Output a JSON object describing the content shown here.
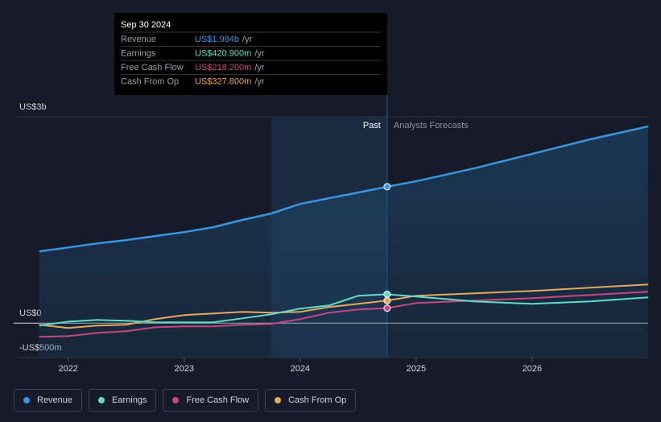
{
  "chart_data": {
    "type": "line",
    "x": [
      2021.75,
      2022,
      2022.25,
      2022.5,
      2022.75,
      2023,
      2023.25,
      2023.5,
      2023.75,
      2024,
      2024.25,
      2024.5,
      2024.75,
      2025,
      2025.5,
      2026,
      2026.5,
      2027
    ],
    "xlim": [
      2021.53,
      2027
    ],
    "xticks": [
      2022,
      2023,
      2024,
      2025,
      2026
    ],
    "ylim": [
      -500,
      3000
    ],
    "yticks": [
      {
        "value": 3000,
        "label": "US$3b"
      },
      {
        "value": 0,
        "label": "US$0"
      },
      {
        "value": -500,
        "label": "-US$500m"
      }
    ],
    "series": [
      {
        "name": "Revenue",
        "color": "#3a96e0",
        "values": [
          1043,
          1100,
          1160,
          1207,
          1266,
          1324,
          1395,
          1500,
          1594,
          1734,
          1817,
          1898,
          1984,
          2063,
          2250,
          2461,
          2672,
          2860
        ]
      },
      {
        "name": "Earnings",
        "color": "#5fdcc8",
        "values": [
          -35,
          23,
          47,
          35,
          12,
          12,
          12,
          70,
          129,
          211,
          258,
          398,
          420.9,
          387,
          316,
          281,
          316,
          375
        ]
      },
      {
        "name": "Free Cash Flow",
        "color": "#c8477e",
        "values": [
          -199,
          -188,
          -141,
          -117,
          -59,
          -47,
          -47,
          -23,
          -12,
          59,
          152,
          199,
          218.2,
          293,
          328,
          363,
          410,
          457
        ]
      },
      {
        "name": "Cash From Op",
        "color": "#e6a85a",
        "values": [
          -23,
          -70,
          -35,
          -23,
          59,
          117,
          141,
          164,
          152,
          164,
          234,
          281,
          327.8,
          398,
          434,
          469,
          516,
          563
        ]
      }
    ],
    "highlight": [
      2023.75,
      2024.75
    ],
    "past_label": "Past",
    "forecast_label": "Analysts Forecasts",
    "tooltip": {
      "title": "Sep 30 2024",
      "unit": "/yr",
      "labels": [
        "US$1.984b",
        "US$420.900m",
        "US$218.200m",
        "US$327.800m"
      ]
    }
  }
}
